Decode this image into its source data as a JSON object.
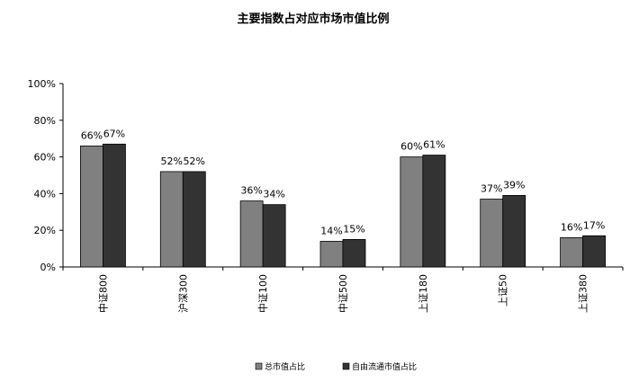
{
  "chart_data": {
    "type": "bar",
    "title": "主要指数占对应市场市值比例",
    "xlabel": "",
    "ylabel": "",
    "categories": [
      "中证800",
      "沪深300",
      "中证100",
      "中证500",
      "上证180",
      "上证50",
      "上证380"
    ],
    "series": [
      {
        "name": "总市值占比",
        "values": [
          66,
          52,
          36,
          14,
          60,
          37,
          16
        ],
        "labels": [
          "66%",
          "52%",
          "36%",
          "14%",
          "60%",
          "37%",
          "16%"
        ],
        "color": "#808080"
      },
      {
        "name": "自由流通市值占比",
        "values": [
          67,
          52,
          34,
          15,
          61,
          39,
          17
        ],
        "labels": [
          "67%",
          "52%",
          "34%",
          "15%",
          "61%",
          "39%",
          "17%"
        ],
        "color": "#333333"
      }
    ],
    "ylim": [
      0,
      100
    ],
    "yticks": [
      0,
      20,
      40,
      60,
      80,
      100
    ],
    "ytick_labels": [
      "0%",
      "20%",
      "40%",
      "60%",
      "80%",
      "100%"
    ],
    "grid": false,
    "legend_position": "bottom-center"
  }
}
